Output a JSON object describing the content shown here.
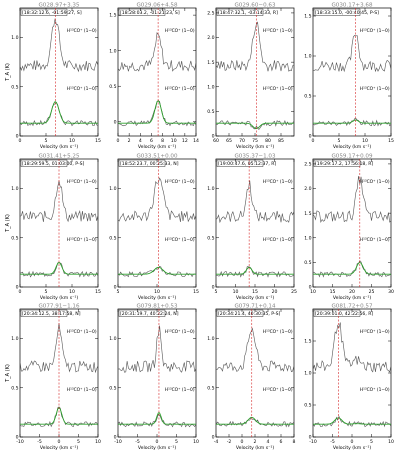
{
  "figure": {
    "y_axis_label": "T_A (K)",
    "x_axis_label": "Velocity (km s⁻¹)",
    "line_label_top": "H¹³CO⁺ (1−0)",
    "line_label_bottom": "H¹³CO⁺ (1−0)"
  },
  "chart_data": [
    {
      "type": "line",
      "title": "G028.97+3.35",
      "box_label": "[18:32:12.6, -01:59:27, S]",
      "xlim": [
        0,
        15
      ],
      "xticks": [
        0,
        5,
        10,
        15
      ],
      "ylim": [
        0,
        1.3
      ],
      "yticks": [
        0,
        0.5,
        1.0
      ],
      "peak_x": 6.8,
      "peak_top": 1.2,
      "peak_bottom": 0.35,
      "width": 1.0
    },
    {
      "type": "line",
      "title": "G029.06+4.58",
      "box_label": "[18:28:03.2, -01:21:23, S]",
      "xlim": [
        0,
        14
      ],
      "xticks": [
        0,
        2,
        4,
        6,
        8,
        10,
        12,
        14
      ],
      "ylim": [
        -0.2,
        1.6
      ],
      "yticks": [
        0,
        0.5,
        1.0,
        1.5
      ],
      "peak_x": 7.2,
      "peak_top": 1.2,
      "peak_bottom": 0.3,
      "width": 0.8
    },
    {
      "type": "line",
      "title": "G029.60−0.63",
      "box_label": "[18:47:32.1, -03:14:33, R]",
      "xlim": [
        60,
        90
      ],
      "xticks": [
        60,
        65,
        70,
        75,
        80,
        85
      ],
      "ylim": [
        0,
        2.6
      ],
      "yticks": [
        0,
        0.5,
        1.0,
        1.5,
        2.0,
        2.5
      ],
      "peak_x": 75.5,
      "peak_top": 2.3,
      "peak_bottom": 0.15,
      "width": 1.8
    },
    {
      "type": "line",
      "title": "G030.17+3.68",
      "box_label": "[18:33:15.0, -00:40:45, P-S]",
      "xlim": [
        0,
        15
      ],
      "xticks": [
        0,
        5,
        10,
        15
      ],
      "ylim": [
        0,
        1.6
      ],
      "yticks": [
        0,
        0.5,
        1.0,
        1.5
      ],
      "peak_x": 8.2,
      "peak_top": 1.3,
      "peak_bottom": 0.2,
      "width": 0.8
    },
    {
      "type": "line",
      "title": "G031.41+5.25",
      "box_label": "[18:29:59.5, 01:03:00, P-S]",
      "xlim": [
        0,
        15
      ],
      "xticks": [
        0,
        5,
        10,
        15
      ],
      "ylim": [
        0,
        1.3
      ],
      "yticks": [
        0,
        0.5,
        1.0
      ],
      "peak_x": 7.5,
      "peak_top": 1.1,
      "peak_bottom": 0.25,
      "width": 0.8
    },
    {
      "type": "line",
      "title": "G033.51+0.00",
      "box_label": "[18:52:23.7, 00:25:33, N]",
      "xlim": [
        5,
        15
      ],
      "xticks": [
        5,
        10,
        15
      ],
      "ylim": [
        0,
        1.3
      ],
      "yticks": [
        0,
        0.5,
        1.0
      ],
      "peak_x": 10.2,
      "peak_top": 1.1,
      "peak_bottom": 0.2,
      "width": 0.8
    },
    {
      "type": "line",
      "title": "G035.37−1.03",
      "box_label": "[19:00:47.6, 05:12:37, R]",
      "xlim": [
        5,
        25
      ],
      "xticks": [
        5,
        10,
        15,
        20,
        25
      ],
      "ylim": [
        0,
        1.3
      ],
      "yticks": [
        0,
        0.5,
        1.0
      ],
      "peak_x": 13.5,
      "peak_top": 1.05,
      "peak_bottom": 0.2,
      "width": 1.0
    },
    {
      "type": "line",
      "title": "G059.17+0.09",
      "box_label": "[19:29:17.2, 17:56:18, R]",
      "xlim": [
        10,
        30
      ],
      "xticks": [
        10,
        15,
        20,
        25,
        30
      ],
      "ylim": [
        0,
        2.6
      ],
      "yticks": [
        0,
        0.5,
        1.0,
        1.5,
        2.0,
        2.5
      ],
      "peak_x": 22.0,
      "peak_top": 2.2,
      "peak_bottom": 0.5,
      "width": 1.2
    },
    {
      "type": "line",
      "title": "G077.91−1.16",
      "box_label": "[20:34:12.5, 38:17:58, N]",
      "xlim": [
        -10,
        10
      ],
      "xticks": [
        -10,
        -5,
        0,
        5,
        10
      ],
      "ylim": [
        0,
        1.3
      ],
      "yticks": [
        0,
        0.5,
        1.0
      ],
      "peak_x": 0.0,
      "peak_top": 1.1,
      "peak_bottom": 0.3,
      "width": 1.0
    },
    {
      "type": "line",
      "title": "G079.81+0.53",
      "box_label": "[20:31:19.7, 40:22:24, N]",
      "xlim": [
        -10,
        10
      ],
      "xticks": [
        -10,
        -5,
        0,
        5,
        10
      ],
      "ylim": [
        0,
        1.3
      ],
      "yticks": [
        0,
        0.5,
        1.0
      ],
      "peak_x": 0.5,
      "peak_top": 1.1,
      "peak_bottom": 0.25,
      "width": 0.8
    },
    {
      "type": "line",
      "title": "G079.71+0.14",
      "box_label": "[20:34:21.4, 40:30:35, P-S]",
      "xlim": [
        -4,
        8
      ],
      "xticks": [
        -4,
        -2,
        0,
        2,
        4,
        6,
        8
      ],
      "ylim": [
        0,
        1.3
      ],
      "yticks": [
        0,
        0.5,
        1.0
      ],
      "peak_x": 1.5,
      "peak_top": 1.1,
      "peak_bottom": 0.2,
      "width": 0.8
    },
    {
      "type": "line",
      "title": "G081.72+0.57",
      "box_label": "[20:39:01.0, 42:22:56, R]",
      "xlim": [
        -10,
        10
      ],
      "xticks": [
        -10,
        -5,
        0,
        5,
        10
      ],
      "ylim": [
        0,
        2.0
      ],
      "yticks": [
        0,
        0.5,
        1.0,
        1.5
      ],
      "peak_x": -3.5,
      "peak_top": 1.8,
      "peak_bottom": 0.3,
      "width": 1.3,
      "peak2_x": 1.2,
      "peak2_top": 1.2
    }
  ],
  "colors": {
    "axis": "#000000",
    "spectrum": "#555555",
    "fit": "#2ca02c",
    "marker": "#d62728",
    "title": "#888888"
  }
}
